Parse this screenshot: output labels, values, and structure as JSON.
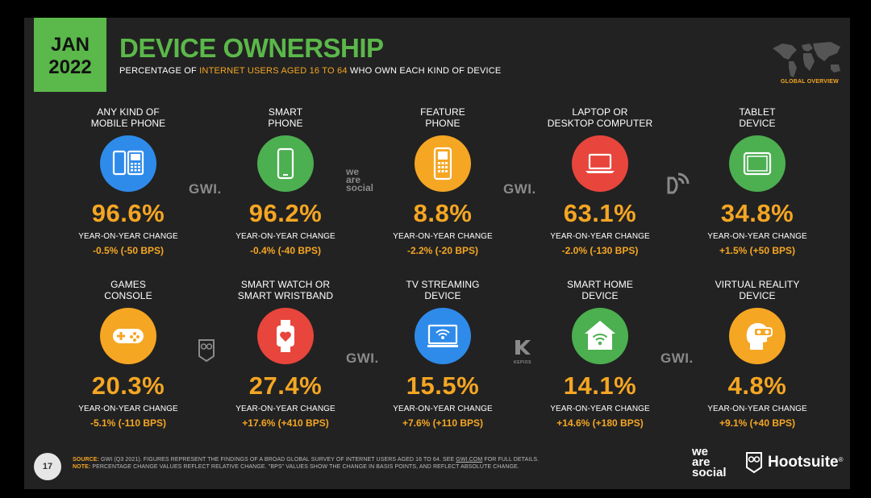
{
  "header": {
    "month": "JAN",
    "year": "2022",
    "title": "DEVICE OWNERSHIP",
    "subtitle_pre": "PERCENTAGE OF ",
    "subtitle_hl": "INTERNET USERS AGED 16 TO 64",
    "subtitle_post": " WHO OWN EACH KIND OF DEVICE",
    "badge": "GLOBAL OVERVIEW"
  },
  "devices": [
    {
      "label1": "ANY KIND OF",
      "label2": "MOBILE PHONE",
      "value": "96.6%",
      "yoy": "YEAR-ON-YEAR CHANGE",
      "change": "-0.5% (-50 BPS)",
      "color": "#2E8BEA",
      "icon": "mobile-phones-icon"
    },
    {
      "label1": "SMART",
      "label2": "PHONE",
      "value": "96.2%",
      "yoy": "YEAR-ON-YEAR CHANGE",
      "change": "-0.4% (-40 BPS)",
      "color": "#4CAF50",
      "icon": "smartphone-icon"
    },
    {
      "label1": "FEATURE",
      "label2": "PHONE",
      "value": "8.8%",
      "yoy": "YEAR-ON-YEAR CHANGE",
      "change": "-2.2% (-20 BPS)",
      "color": "#F5A623",
      "icon": "feature-phone-icon"
    },
    {
      "label1": "LAPTOP OR",
      "label2": "DESKTOP COMPUTER",
      "value": "63.1%",
      "yoy": "YEAR-ON-YEAR CHANGE",
      "change": "-2.0% (-130 BPS)",
      "color": "#E8453C",
      "icon": "laptop-icon"
    },
    {
      "label1": "TABLET",
      "label2": "DEVICE",
      "value": "34.8%",
      "yoy": "YEAR-ON-YEAR CHANGE",
      "change": "+1.5% (+50 BPS)",
      "color": "#4CAF50",
      "icon": "tablet-icon"
    },
    {
      "label1": "GAMES",
      "label2": "CONSOLE",
      "value": "20.3%",
      "yoy": "YEAR-ON-YEAR CHANGE",
      "change": "-5.1% (-110 BPS)",
      "color": "#F5A623",
      "icon": "gamepad-icon"
    },
    {
      "label1": "SMART WATCH OR",
      "label2": "SMART WRISTBAND",
      "value": "27.4%",
      "yoy": "YEAR-ON-YEAR CHANGE",
      "change": "+17.6% (+410 BPS)",
      "color": "#E8453C",
      "icon": "smartwatch-icon"
    },
    {
      "label1": "TV STREAMING",
      "label2": "DEVICE",
      "value": "15.5%",
      "yoy": "YEAR-ON-YEAR CHANGE",
      "change": "+7.6% (+110 BPS)",
      "color": "#2E8BEA",
      "icon": "tv-streaming-icon"
    },
    {
      "label1": "SMART HOME",
      "label2": "DEVICE",
      "value": "14.1%",
      "yoy": "YEAR-ON-YEAR CHANGE",
      "change": "+14.6% (+180 BPS)",
      "color": "#4CAF50",
      "icon": "smart-home-icon"
    },
    {
      "label1": "VIRTUAL REALITY",
      "label2": "DEVICE",
      "value": "4.8%",
      "yoy": "YEAR-ON-YEAR CHANGE",
      "change": "+9.1% (+40 BPS)",
      "color": "#F5A623",
      "icon": "vr-headset-icon"
    }
  ],
  "watermarks": {
    "gwi": "GWI.",
    "we": "we",
    "are": "are",
    "social": "social",
    "kepios": "KEPIOS"
  },
  "footer": {
    "page": "17",
    "source_tag": "SOURCE:",
    "source_pre": " GWI (Q3 2021). FIGURES REPRESENT THE FINDINGS OF A BROAD GLOBAL SURVEY OF INTERNET USERS AGED 16 TO 64. SEE ",
    "source_link": "GWI.COM",
    "source_post": " FOR FULL DETAILS.",
    "note_tag": "NOTE:",
    "note_text": " PERCENTAGE CHANGE VALUES REFLECT RELATIVE CHANGE. \"BPS\" VALUES SHOW THE CHANGE IN BASIS POINTS, AND REFLECT ABSOLUTE CHANGE.",
    "brand_we": "we",
    "brand_are": "are",
    "brand_social": "social",
    "brand_hootsuite": "Hootsuite",
    "brand_reg": "®"
  }
}
